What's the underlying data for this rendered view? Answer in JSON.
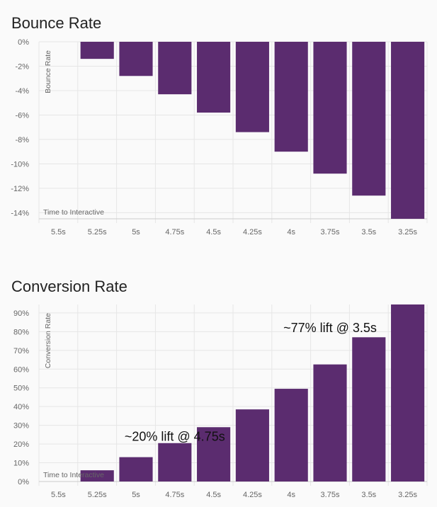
{
  "chart_data": [
    {
      "type": "bar",
      "title": "Bounce Rate",
      "xlabel": "Time to Interactive",
      "ylabel": "Bounce Rate",
      "categories": [
        "5.5s",
        "5.25s",
        "5s",
        "4.75s",
        "4.5s",
        "4.25s",
        "4s",
        "3.75s",
        "3.5s",
        "3.25s"
      ],
      "values": [
        0,
        -1.4,
        -2.8,
        -4.3,
        -5.8,
        -7.4,
        -9.0,
        -10.8,
        -12.6,
        -14.5
      ],
      "ylim": [
        -14.5,
        0
      ],
      "yticks": [
        0,
        -2,
        -4,
        -6,
        -8,
        -10,
        -12,
        -14
      ],
      "ytick_labels": [
        "0%",
        "-2%",
        "-4%",
        "-6%",
        "-8%",
        "-10%",
        "-12%",
        "-14%"
      ],
      "grid": true,
      "color": "#5b2c6f"
    },
    {
      "type": "bar",
      "title": "Conversion Rate",
      "xlabel": "Time to Interactive",
      "ylabel": "Conversion Rate",
      "categories": [
        "5.5s",
        "5.25s",
        "5s",
        "4.75s",
        "4.5s",
        "4.25s",
        "4s",
        "3.75s",
        "3.5s",
        "3.25s"
      ],
      "values": [
        0,
        6,
        13,
        20.5,
        29,
        38.5,
        49.5,
        62.5,
        77,
        94.5
      ],
      "ylim": [
        0,
        94.5
      ],
      "yticks": [
        0,
        10,
        20,
        30,
        40,
        50,
        60,
        70,
        80,
        90
      ],
      "ytick_labels": [
        "0%",
        "10%",
        "20%",
        "30%",
        "40%",
        "50%",
        "60%",
        "70%",
        "80%",
        "90%"
      ],
      "grid": true,
      "color": "#5b2c6f",
      "annotations": [
        {
          "text": "~20% lift @ 4.75s",
          "category": "4.75s",
          "y": 24
        },
        {
          "text": "~77% lift @ 3.5s",
          "category": "3.75s",
          "y": 82
        }
      ]
    }
  ]
}
